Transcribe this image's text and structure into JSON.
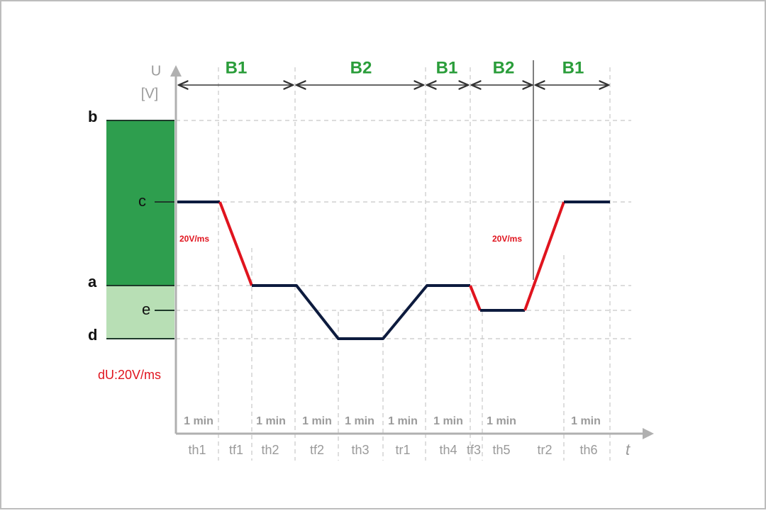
{
  "axis": {
    "y_label": "U",
    "y_unit": "[V]",
    "x_label": "t"
  },
  "levels": [
    "b",
    "c",
    "a",
    "e",
    "d"
  ],
  "phases": [
    "B1",
    "B2",
    "B1",
    "B2",
    "B1"
  ],
  "durations": [
    "1 min",
    "1 min",
    "1 min",
    "1 min",
    "1 min",
    "1 min",
    "1 min",
    "1 min"
  ],
  "intervals": [
    "th1",
    "tf1",
    "th2",
    "tf2",
    "th3",
    "tr1",
    "th4",
    "tf3",
    "th5",
    "tr2",
    "th6"
  ],
  "slope_labels": [
    "20V/ms",
    "20V/ms"
  ],
  "note": "dU:20V/ms"
}
